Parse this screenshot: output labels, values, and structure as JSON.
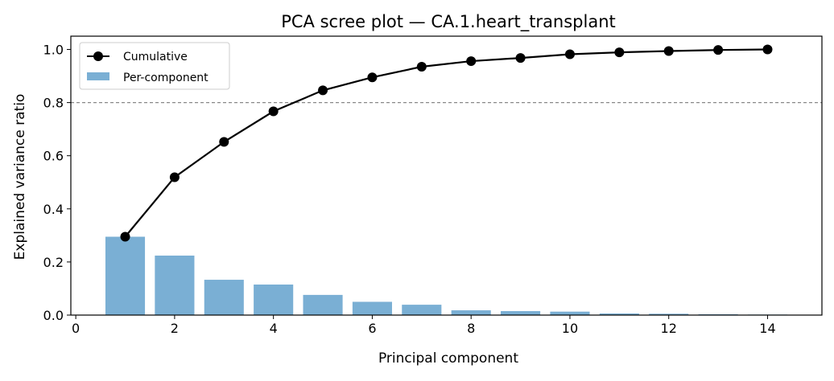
{
  "chart_data": {
    "type": "bar+line",
    "title": "PCA scree plot — CA.1.heart_transplant",
    "xlabel": "Principal component",
    "ylabel": "Explained variance ratio",
    "xlim": [
      -0.1,
      15.1
    ],
    "ylim": [
      0,
      1.05
    ],
    "xticks": [
      "0",
      "2",
      "4",
      "6",
      "8",
      "10",
      "12",
      "14"
    ],
    "yticks": [
      "0.0",
      "0.2",
      "0.4",
      "0.6",
      "0.8",
      "1.0"
    ],
    "x": [
      1,
      2,
      3,
      4,
      5,
      6,
      7,
      8,
      9,
      10,
      11,
      12,
      13,
      14
    ],
    "series": [
      {
        "name": "Per-component",
        "type": "bar",
        "color": "#7aafd4",
        "values": [
          0.295,
          0.224,
          0.133,
          0.115,
          0.076,
          0.05,
          0.039,
          0.018,
          0.015,
          0.013,
          0.006,
          0.005,
          0.003,
          0.002
        ]
      },
      {
        "name": "Cumulative",
        "type": "line",
        "color": "#000000",
        "values": [
          0.295,
          0.519,
          0.652,
          0.767,
          0.846,
          0.895,
          0.935,
          0.956,
          0.968,
          0.982,
          0.989,
          0.994,
          0.998,
          1.0
        ]
      }
    ],
    "threshold_line": {
      "y": 0.8,
      "style": "dashed",
      "color": "#888888"
    },
    "legend": "top-left",
    "grid": false
  }
}
